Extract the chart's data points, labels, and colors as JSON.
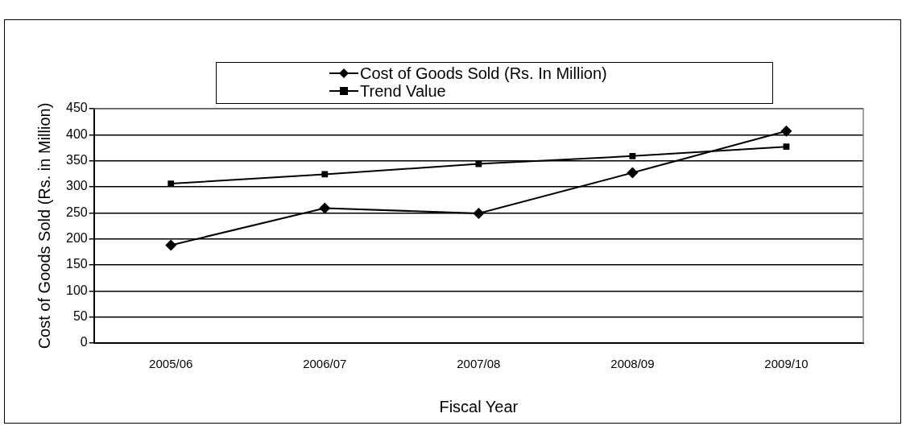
{
  "chart_data": {
    "type": "line",
    "xlabel": "Fiscal Year",
    "ylabel": "Cost of Goods Sold (Rs. in Million)",
    "categories": [
      "2005/06",
      "2006/07",
      "2007/08",
      "2008/09",
      "2009/10"
    ],
    "series": [
      {
        "name": "Cost of Goods Sold (Rs. In Million)",
        "color": "#000000",
        "marker": "diamond",
        "values": [
          188,
          259,
          249,
          327,
          407
        ]
      },
      {
        "name": "Trend Value",
        "color": "#000000",
        "marker": "square",
        "values": [
          306,
          324,
          344,
          359,
          377
        ]
      }
    ],
    "ylim": [
      0,
      450
    ],
    "yticks": [
      0,
      50,
      100,
      150,
      200,
      250,
      300,
      350,
      400,
      450
    ],
    "grid": "y",
    "legend": "top",
    "line_style": "solid"
  }
}
